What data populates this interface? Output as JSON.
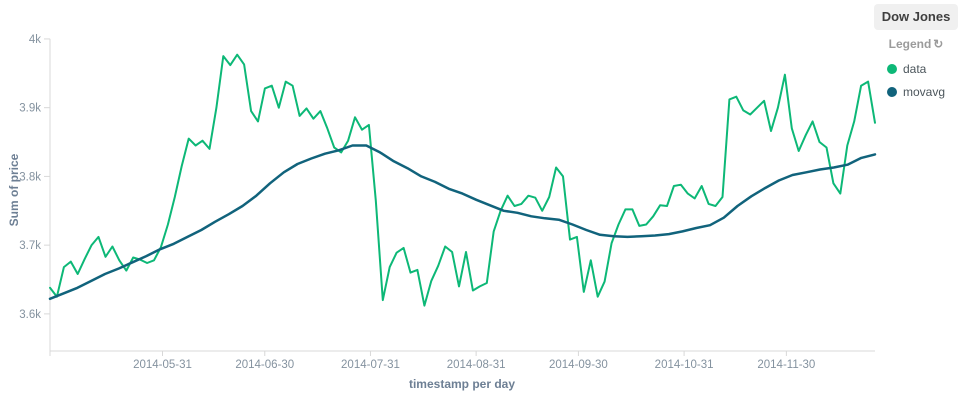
{
  "header": {
    "title": "Dow Jones"
  },
  "legend": {
    "label": "Legend",
    "toggle_icon": "circle-arrow-icon",
    "items": [
      {
        "label": "data",
        "color": "#0db877"
      },
      {
        "label": "movavg",
        "color": "#11637c"
      }
    ]
  },
  "chart_data": {
    "type": "line",
    "title": "Dow Jones",
    "xlabel": "timestamp per day",
    "ylabel": "Sum of price",
    "grid": false,
    "legend_position": "top-right",
    "xlim": [
      "2014-04-28",
      "2014-12-26"
    ],
    "ylim": [
      3546,
      4013
    ],
    "y_ticks": [
      {
        "value": 3600,
        "label": "3.6k"
      },
      {
        "value": 3700,
        "label": "3.7k"
      },
      {
        "value": 3800,
        "label": "3.8k"
      },
      {
        "value": 3900,
        "label": "3.9k"
      },
      {
        "value": 4000,
        "label": "4k"
      }
    ],
    "x_ticks": [
      "2014-05-31",
      "2014-06-30",
      "2014-07-31",
      "2014-08-31",
      "2014-09-30",
      "2014-10-31",
      "2014-11-30"
    ],
    "series": [
      {
        "name": "data",
        "color": "#0db877",
        "width": 2,
        "values": [
          3638,
          3625,
          3668,
          3676,
          3658,
          3680,
          3700,
          3712,
          3683,
          3698,
          3678,
          3663,
          3682,
          3679,
          3674,
          3678,
          3697,
          3730,
          3770,
          3815,
          3855,
          3845,
          3852,
          3840,
          3900,
          3975,
          3962,
          3977,
          3963,
          3895,
          3880,
          3928,
          3932,
          3900,
          3938,
          3932,
          3888,
          3899,
          3884,
          3895,
          3870,
          3842,
          3835,
          3852,
          3886,
          3868,
          3875,
          3765,
          3620,
          3668,
          3689,
          3696,
          3660,
          3664,
          3612,
          3648,
          3670,
          3698,
          3690,
          3640,
          3690,
          3634,
          3640,
          3645,
          3720,
          3750,
          3772,
          3757,
          3760,
          3772,
          3769,
          3750,
          3770,
          3813,
          3800,
          3708,
          3712,
          3632,
          3678,
          3625,
          3647,
          3703,
          3730,
          3752,
          3752,
          3728,
          3730,
          3742,
          3758,
          3757,
          3786,
          3788,
          3775,
          3768,
          3786,
          3760,
          3757,
          3770,
          3912,
          3916,
          3896,
          3890,
          3900,
          3910,
          3866,
          3900,
          3948,
          3870,
          3837,
          3860,
          3880,
          3850,
          3842,
          3790,
          3775,
          3845,
          3880,
          3932,
          3938,
          3878
        ]
      },
      {
        "name": "movavg",
        "color": "#11637c",
        "width": 2.5,
        "values": [
          3622,
          3630,
          3638,
          3648,
          3658,
          3666,
          3675,
          3684,
          3694,
          3702,
          3712,
          3722,
          3734,
          3745,
          3757,
          3772,
          3790,
          3806,
          3818,
          3826,
          3833,
          3838,
          3845,
          3845,
          3835,
          3822,
          3812,
          3800,
          3792,
          3782,
          3775,
          3766,
          3758,
          3750,
          3747,
          3742,
          3739,
          3737,
          3730,
          3722,
          3715,
          3713,
          3712,
          3713,
          3714,
          3716,
          3720,
          3725,
          3729,
          3740,
          3757,
          3771,
          3783,
          3794,
          3802,
          3806,
          3810,
          3813,
          3817,
          3827,
          3832
        ]
      }
    ]
  }
}
